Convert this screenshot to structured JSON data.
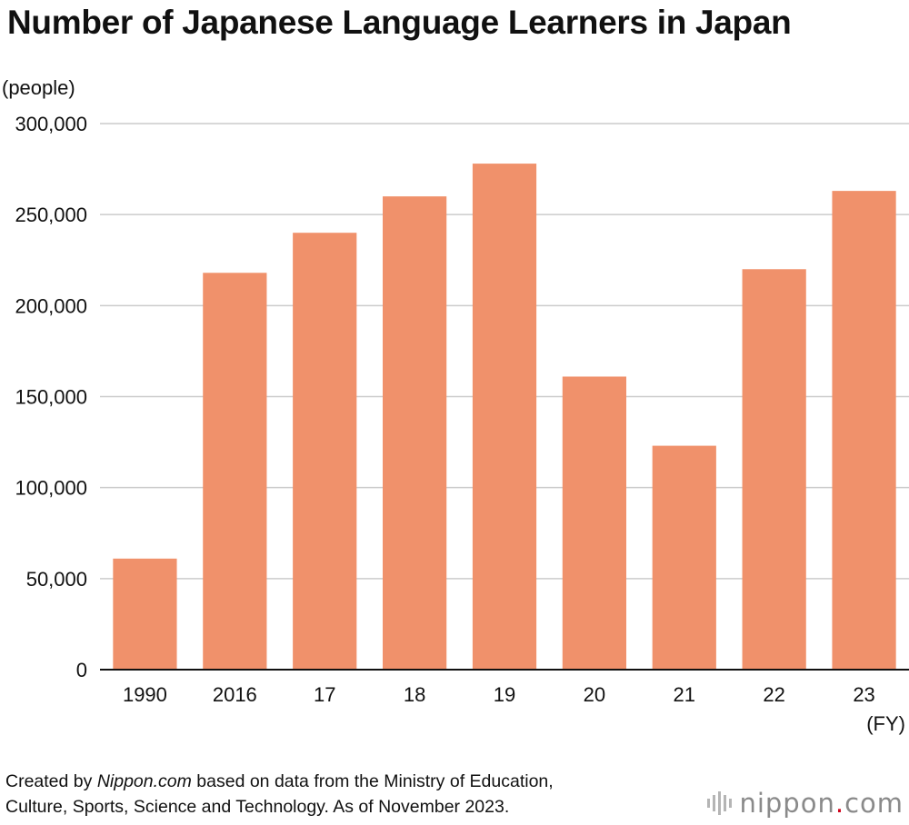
{
  "title": "Number of Japanese Language Learners in Japan",
  "source": {
    "prefix": "Created by ",
    "site": "Nippon.com",
    "line1_rest": " based on data from the Ministry of Education,",
    "line2": "Culture, Sports, Science and Technology. As of November 2023."
  },
  "logo": {
    "text_before_dot": "nippon",
    "dot": ".",
    "text_after_dot": "com",
    "icon": "sound-bars-icon"
  },
  "colors": {
    "bar": "#f0916b",
    "grid": "#cccccc",
    "axis": "#111111",
    "logo_dot": "#d0021b"
  },
  "chart_data": {
    "type": "bar",
    "title": "Number of Japanese Language Learners in Japan",
    "ylabel": "(people)",
    "xlabel": "(FY)",
    "categories": [
      "1990",
      "2016",
      "17",
      "18",
      "19",
      "20",
      "21",
      "22",
      "23"
    ],
    "values": [
      61000,
      218000,
      240000,
      260000,
      278000,
      161000,
      123000,
      220000,
      263000
    ],
    "ylim": [
      0,
      300000
    ],
    "yticks": [
      0,
      50000,
      100000,
      150000,
      200000,
      250000,
      300000
    ],
    "ytick_labels": [
      "0",
      "50,000",
      "100,000",
      "150,000",
      "200,000",
      "250,000",
      "300,000"
    ],
    "grid": true,
    "legend": "none"
  }
}
